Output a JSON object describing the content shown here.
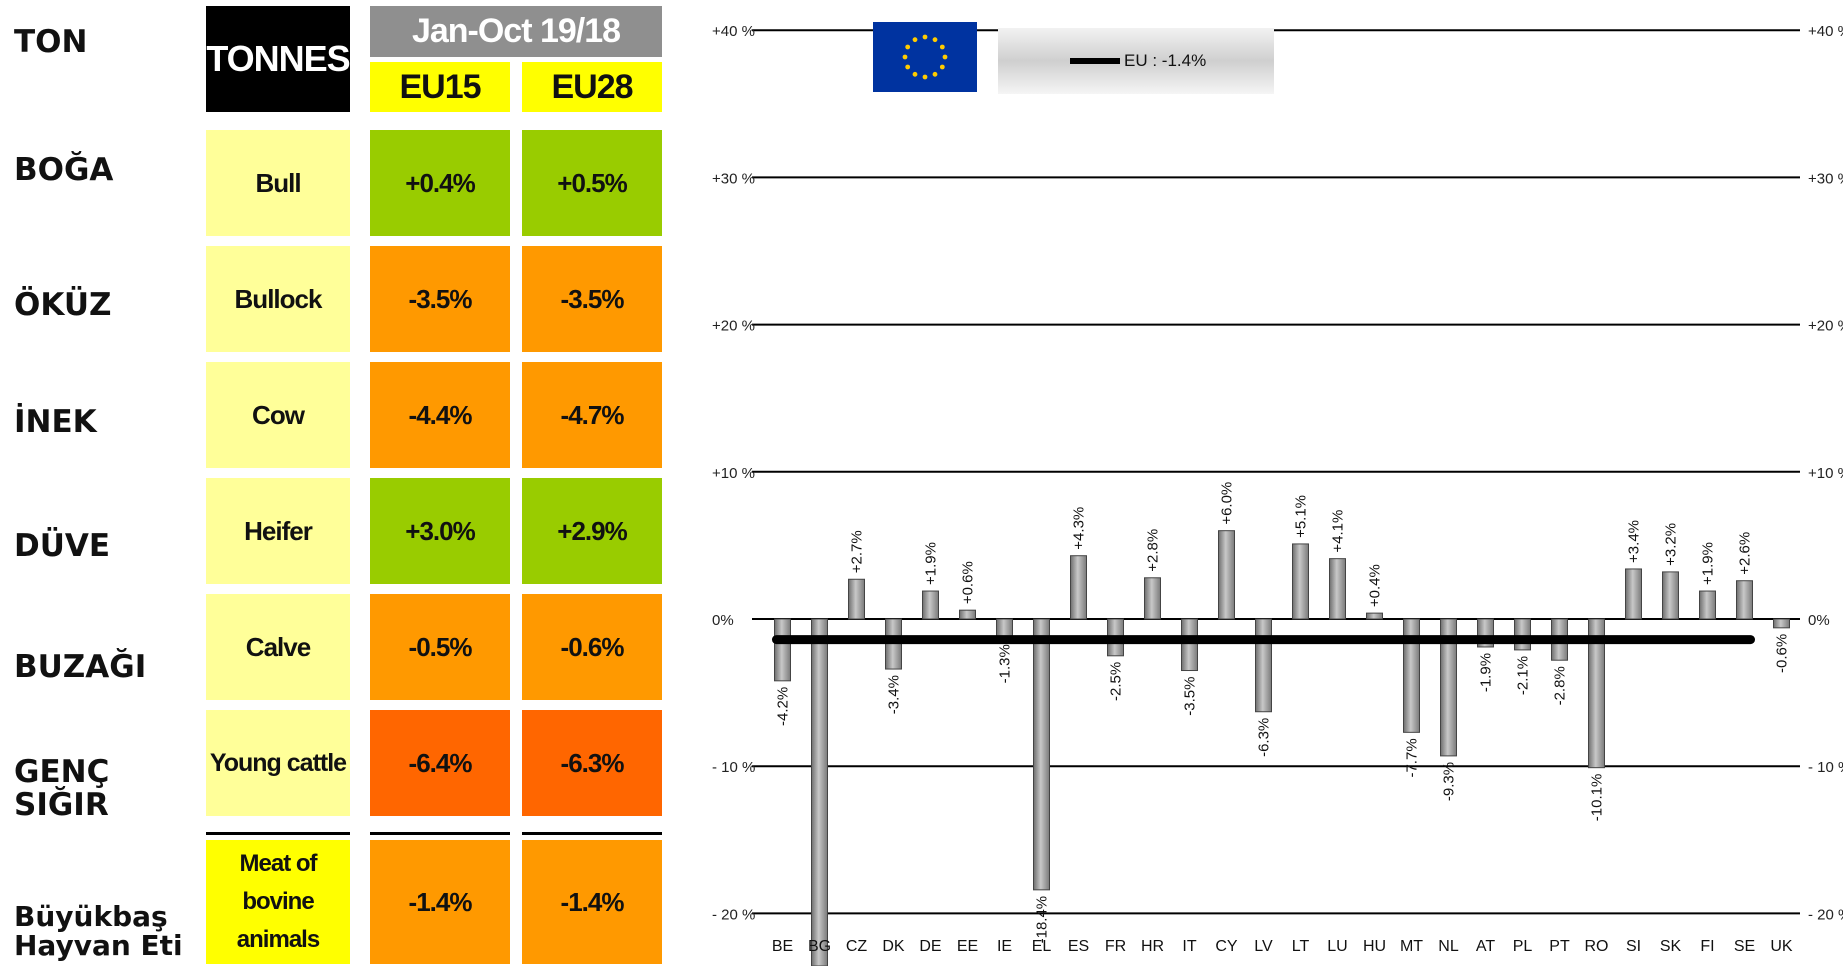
{
  "turkish_labels": {
    "ton": "TON",
    "boga": "BOĞA",
    "okuz": "ÖKÜZ",
    "inek": "İNEK",
    "duve": "DÜVE",
    "buzagi": "BUZAĞI",
    "genc_1": "GENÇ",
    "genc_2": "SIĞIR",
    "meat_1": "Büyükbaş",
    "meat_2": "Hayvan Eti"
  },
  "table": {
    "unit": "TONNES",
    "period": "Jan-Oct 19/18",
    "col_eu15": "EU15",
    "col_eu28": "EU28",
    "rows": [
      {
        "category": "Bull",
        "eu15": "+0.4%",
        "eu28": "+0.5%"
      },
      {
        "category": "Bullock",
        "eu15": "-3.5%",
        "eu28": "-3.5%"
      },
      {
        "category": "Cow",
        "eu15": "-4.4%",
        "eu28": "-4.7%"
      },
      {
        "category": "Heifer",
        "eu15": "+3.0%",
        "eu28": "+2.9%"
      },
      {
        "category": "Calve",
        "eu15": "-0.5%",
        "eu28": "-0.6%"
      },
      {
        "category": "Young cattle",
        "eu15": "-6.4%",
        "eu28": "-6.3%"
      },
      {
        "category_lines": [
          "Meat of",
          "bovine",
          "animals"
        ],
        "eu15": "-1.4%",
        "eu28": "-1.4%"
      }
    ],
    "colors": {
      "green": "#99cc00",
      "orange": "#ff9900",
      "dark_orange": "#ff6600",
      "light_yellow": "#ffff99",
      "yellow": "#ffff00"
    }
  },
  "legend": {
    "eu_label": "EU : -1.4%",
    "flag_icon": "eu-flag-icon"
  },
  "chart_data": {
    "type": "bar",
    "categories": [
      "BE",
      "BG",
      "CZ",
      "DK",
      "DE",
      "EE",
      "IE",
      "EL",
      "ES",
      "FR",
      "HR",
      "IT",
      "CY",
      "LV",
      "LT",
      "LU",
      "HU",
      "MT",
      "NL",
      "AT",
      "PL",
      "PT",
      "RO",
      "SI",
      "SK",
      "FI",
      "SE",
      "UK"
    ],
    "values": [
      -4.2,
      -25.0,
      2.7,
      -3.4,
      1.9,
      0.6,
      -1.3,
      -18.4,
      4.3,
      -2.5,
      2.8,
      -3.5,
      6.0,
      -6.3,
      5.1,
      4.1,
      0.4,
      -7.7,
      -9.3,
      -1.9,
      -2.1,
      -2.8,
      -10.1,
      3.4,
      3.2,
      1.9,
      2.6,
      -0.6
    ],
    "labels": [
      "-4.2%",
      "",
      "+2.7%",
      "-3.4%",
      "+1.9%",
      "+0.6%",
      "-1.3%",
      "-18.4%",
      "+4.3%",
      "-2.5%",
      "+2.8%",
      "-3.5%",
      "+6.0%",
      "-6.3%",
      "+5.1%",
      "+4.1%",
      "+0.4%",
      "-7.7%",
      "-9.3%",
      "-1.9%",
      "-2.1%",
      "-2.8%",
      "-10.1%",
      "+3.4%",
      "+3.2%",
      "+1.9%",
      "+2.6%",
      "-0.6%"
    ],
    "eu_average": -1.4,
    "yticks": [
      40,
      30,
      20,
      10,
      0,
      -10,
      -20
    ],
    "ytick_labels_left": [
      "+40 %",
      "+30 %",
      "+20 %",
      "+10 %",
      "0%",
      "- 10 %",
      "- 20 %"
    ],
    "ytick_labels_right": [
      "+40 %",
      "+30 %",
      "+20 %",
      "+10 %",
      "0%",
      "- 10 %",
      "- 20 %"
    ],
    "ylim": [
      -22,
      40
    ],
    "grid": true,
    "bar_color": "#a6a6a6",
    "avg_line_color": "#000000"
  }
}
